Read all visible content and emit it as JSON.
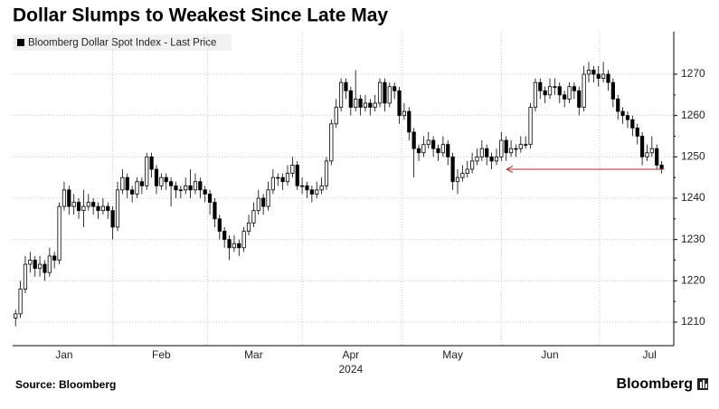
{
  "chart_data": {
    "type": "candlestick",
    "title": "Dollar Slumps to Weakest Since Late May",
    "legend": "Bloomberg Dollar Spot Index - Last Price",
    "source": "Source: Bloomberg",
    "brand": "Bloomberg",
    "year_label": "2024",
    "color": "#000000",
    "reference_line": {
      "value": 1247,
      "color": "#b54a4a"
    },
    "xlim": [
      -0.6,
      135.5
    ],
    "xticks": [
      {
        "value": 10,
        "label": "Jan"
      },
      {
        "value": 30,
        "label": "Feb"
      },
      {
        "value": 49,
        "label": "Mar"
      },
      {
        "value": 69,
        "label": "Apr"
      },
      {
        "value": 90,
        "label": "May"
      },
      {
        "value": 110,
        "label": "Jun"
      },
      {
        "value": 130.5,
        "label": "Jul"
      }
    ],
    "ylim": [
      1204.3,
      1280.3
    ],
    "yticks": [
      1210,
      1220,
      1230,
      1240,
      1250,
      1260,
      1270
    ],
    "grid": true,
    "open": [
      1211,
      1212,
      1218,
      1224,
      1225,
      1223,
      1224,
      1222,
      1226,
      1225,
      1238,
      1242,
      1238,
      1239,
      1237,
      1238,
      1239,
      1238,
      1237,
      1238,
      1237,
      1233,
      1242,
      1245,
      1242,
      1241,
      1244,
      1243,
      1250,
      1247,
      1243,
      1245,
      1244,
      1243,
      1242,
      1242,
      1243,
      1242,
      1244,
      1242,
      1241,
      1239,
      1235,
      1232,
      1230,
      1228,
      1229,
      1228,
      1232,
      1234,
      1237,
      1240,
      1238,
      1242,
      1245,
      1245,
      1244,
      1246,
      1248,
      1243,
      1243,
      1242,
      1241,
      1242,
      1243,
      1249,
      1258,
      1262,
      1268,
      1266,
      1262,
      1264,
      1262,
      1263,
      1262,
      1263,
      1268,
      1263,
      1267,
      1266,
      1260,
      1261,
      1256,
      1252,
      1251,
      1253,
      1254,
      1252,
      1251,
      1253,
      1250,
      1244,
      1245,
      1246,
      1247,
      1249,
      1250,
      1252,
      1250,
      1249,
      1250,
      1254,
      1251,
      1252,
      1252,
      1253,
      1253,
      1262,
      1268,
      1266,
      1265,
      1267,
      1267,
      1265,
      1264,
      1267,
      1266,
      1262,
      1270,
      1271,
      1270,
      1269,
      1270,
      1268,
      1264,
      1261,
      1260,
      1259,
      1257,
      1255,
      1250,
      1251,
      1252,
      1248
    ],
    "close": [
      1212,
      1218,
      1224,
      1225,
      1223,
      1224,
      1222,
      1226,
      1225,
      1238,
      1242,
      1238,
      1239,
      1237,
      1238,
      1239,
      1238,
      1237,
      1238,
      1237,
      1233,
      1242,
      1245,
      1242,
      1241,
      1244,
      1243,
      1250,
      1247,
      1243,
      1245,
      1244,
      1243,
      1242,
      1242,
      1243,
      1242,
      1244,
      1242,
      1241,
      1239,
      1235,
      1232,
      1230,
      1228,
      1229,
      1228,
      1232,
      1234,
      1237,
      1240,
      1238,
      1242,
      1245,
      1245,
      1244,
      1246,
      1248,
      1243,
      1243,
      1242,
      1241,
      1242,
      1243,
      1249,
      1258,
      1262,
      1268,
      1266,
      1262,
      1264,
      1262,
      1263,
      1262,
      1263,
      1268,
      1263,
      1267,
      1266,
      1260,
      1261,
      1256,
      1252,
      1251,
      1253,
      1254,
      1252,
      1251,
      1253,
      1250,
      1244,
      1245,
      1246,
      1247,
      1249,
      1250,
      1252,
      1250,
      1249,
      1250,
      1254,
      1251,
      1252,
      1252,
      1253,
      1253,
      1262,
      1268,
      1266,
      1265,
      1267,
      1267,
      1265,
      1264,
      1267,
      1266,
      1262,
      1270,
      1271,
      1270,
      1269,
      1270,
      1268,
      1264,
      1261,
      1260,
      1259,
      1257,
      1255,
      1250,
      1251,
      1252,
      1248,
      1247
    ],
    "high": [
      1213,
      1220,
      1226,
      1227,
      1226,
      1226,
      1225,
      1228,
      1227,
      1239,
      1244,
      1243,
      1241,
      1240,
      1242,
      1241,
      1240,
      1239,
      1240,
      1239,
      1238,
      1244,
      1247,
      1246,
      1243,
      1245,
      1245,
      1251,
      1251,
      1248,
      1246,
      1246,
      1245,
      1244,
      1243,
      1245,
      1247,
      1246,
      1245,
      1243,
      1242,
      1240,
      1236,
      1233,
      1231,
      1231,
      1230,
      1233,
      1236,
      1239,
      1242,
      1241,
      1244,
      1247,
      1246,
      1246,
      1248,
      1250,
      1249,
      1245,
      1244,
      1243,
      1244,
      1245,
      1250,
      1259,
      1264,
      1269,
      1269,
      1267,
      1271,
      1265,
      1265,
      1264,
      1265,
      1269,
      1269,
      1268,
      1268,
      1267,
      1263,
      1262,
      1257,
      1253,
      1255,
      1256,
      1255,
      1253,
      1255,
      1254,
      1251,
      1247,
      1248,
      1249,
      1251,
      1252,
      1254,
      1253,
      1251,
      1252,
      1256,
      1255,
      1254,
      1253,
      1255,
      1255,
      1263,
      1269,
      1269,
      1267,
      1269,
      1269,
      1268,
      1266,
      1268,
      1268,
      1267,
      1272,
      1273,
      1272,
      1272,
      1273,
      1271,
      1269,
      1265,
      1262,
      1261,
      1260,
      1258,
      1256,
      1253,
      1255,
      1253,
      1249
    ],
    "low": [
      1209,
      1211,
      1217,
      1222,
      1221,
      1221,
      1220,
      1221,
      1223,
      1224,
      1237,
      1236,
      1236,
      1235,
      1233,
      1237,
      1236,
      1235,
      1236,
      1235,
      1230,
      1232,
      1241,
      1240,
      1239,
      1240,
      1241,
      1242,
      1245,
      1241,
      1242,
      1242,
      1238,
      1240,
      1240,
      1241,
      1240,
      1241,
      1240,
      1239,
      1236,
      1233,
      1230,
      1228,
      1225,
      1227,
      1226,
      1227,
      1231,
      1233,
      1236,
      1236,
      1237,
      1241,
      1243,
      1242,
      1243,
      1245,
      1242,
      1241,
      1240,
      1239,
      1240,
      1241,
      1242,
      1248,
      1257,
      1261,
      1264,
      1260,
      1261,
      1260,
      1261,
      1260,
      1261,
      1262,
      1261,
      1262,
      1264,
      1258,
      1259,
      1254,
      1245,
      1249,
      1250,
      1252,
      1250,
      1249,
      1250,
      1248,
      1242,
      1241,
      1244,
      1245,
      1246,
      1248,
      1249,
      1248,
      1247,
      1248,
      1249,
      1249,
      1250,
      1250,
      1251,
      1252,
      1252,
      1261,
      1264,
      1263,
      1264,
      1265,
      1263,
      1262,
      1263,
      1264,
      1260,
      1261,
      1268,
      1268,
      1267,
      1268,
      1266,
      1262,
      1259,
      1258,
      1257,
      1255,
      1253,
      1248,
      1249,
      1250,
      1247,
      1246
    ]
  }
}
